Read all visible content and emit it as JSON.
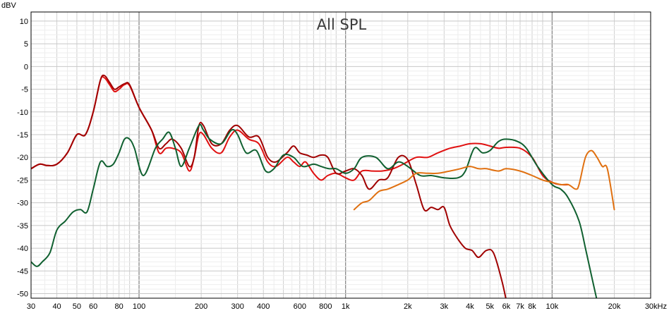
{
  "chart_data": {
    "type": "line",
    "title": "All SPL",
    "ylabel": "dBV",
    "xscale": "log",
    "xlim": [
      30,
      30000
    ],
    "ylim": [
      -51,
      12
    ],
    "grid": true,
    "x_tick_labels": [
      {
        "v": 30,
        "t": "30"
      },
      {
        "v": 40,
        "t": "40"
      },
      {
        "v": 50,
        "t": "50"
      },
      {
        "v": 60,
        "t": "60"
      },
      {
        "v": 80,
        "t": "80"
      },
      {
        "v": 100,
        "t": "100"
      },
      {
        "v": 200,
        "t": "200"
      },
      {
        "v": 300,
        "t": "300"
      },
      {
        "v": 400,
        "t": "400"
      },
      {
        "v": 600,
        "t": "600"
      },
      {
        "v": 800,
        "t": "800"
      },
      {
        "v": 1000,
        "t": "1k"
      },
      {
        "v": 2000,
        "t": "2k"
      },
      {
        "v": 3000,
        "t": "3k"
      },
      {
        "v": 4000,
        "t": "4k"
      },
      {
        "v": 5000,
        "t": "5k"
      },
      {
        "v": 6000,
        "t": "6k"
      },
      {
        "v": 7000,
        "t": "7k"
      },
      {
        "v": 8000,
        "t": "8k"
      },
      {
        "v": 10000,
        "t": "10k"
      },
      {
        "v": 20000,
        "t": "20k"
      },
      {
        "v": 30000,
        "t": "30kHz"
      }
    ],
    "y_ticks": [
      10,
      5,
      0,
      -5,
      -10,
      -15,
      -20,
      -25,
      -30,
      -35,
      -40,
      -45,
      -50
    ],
    "series": [
      {
        "color": "#e01010",
        "points": [
          [
            30,
            -22.5
          ],
          [
            33,
            -21.5
          ],
          [
            36,
            -21.8
          ],
          [
            40,
            -21.5
          ],
          [
            45,
            -19
          ],
          [
            50,
            -15
          ],
          [
            55,
            -15
          ],
          [
            60,
            -10
          ],
          [
            65,
            -3
          ],
          [
            68,
            -2.5
          ],
          [
            72,
            -4
          ],
          [
            76,
            -5.5
          ],
          [
            80,
            -5
          ],
          [
            85,
            -4
          ],
          [
            90,
            -4.2
          ],
          [
            100,
            -9
          ],
          [
            115,
            -14
          ],
          [
            125,
            -19
          ],
          [
            135,
            -18
          ],
          [
            145,
            -18
          ],
          [
            160,
            -19
          ],
          [
            175,
            -23
          ],
          [
            185,
            -20
          ],
          [
            195,
            -15
          ],
          [
            205,
            -15
          ],
          [
            225,
            -18
          ],
          [
            250,
            -19
          ],
          [
            275,
            -15.5
          ],
          [
            300,
            -14
          ],
          [
            340,
            -16
          ],
          [
            380,
            -17
          ],
          [
            420,
            -21
          ],
          [
            460,
            -22
          ],
          [
            520,
            -20
          ],
          [
            560,
            -21
          ],
          [
            600,
            -22
          ],
          [
            640,
            -21
          ],
          [
            700,
            -23.5
          ],
          [
            760,
            -25
          ],
          [
            820,
            -24
          ],
          [
            900,
            -23.5
          ],
          [
            1000,
            -24.5
          ],
          [
            1100,
            -25
          ],
          [
            1200,
            -23
          ],
          [
            1350,
            -23
          ],
          [
            1500,
            -23
          ],
          [
            1700,
            -22.5
          ],
          [
            1900,
            -21.5
          ],
          [
            2200,
            -20
          ],
          [
            2500,
            -20
          ],
          [
            2800,
            -19
          ],
          [
            3200,
            -18
          ],
          [
            3600,
            -17.5
          ],
          [
            4000,
            -17
          ],
          [
            4500,
            -17
          ],
          [
            5000,
            -17.5
          ],
          [
            5500,
            -18
          ],
          [
            6000,
            -17.8
          ],
          [
            7000,
            -18
          ],
          [
            8000,
            -20
          ],
          [
            9000,
            -24
          ],
          [
            10000,
            -25.5
          ],
          [
            11000,
            -26
          ],
          [
            12000,
            -26
          ]
        ]
      },
      {
        "color": "#a00000",
        "points": [
          [
            30,
            -22.5
          ],
          [
            33,
            -21.5
          ],
          [
            36,
            -21.8
          ],
          [
            40,
            -21.5
          ],
          [
            45,
            -19
          ],
          [
            50,
            -15
          ],
          [
            55,
            -15
          ],
          [
            60,
            -10
          ],
          [
            65,
            -3
          ],
          [
            68,
            -2
          ],
          [
            72,
            -3.5
          ],
          [
            76,
            -5
          ],
          [
            80,
            -4.5
          ],
          [
            85,
            -3.8
          ],
          [
            90,
            -4
          ],
          [
            100,
            -9
          ],
          [
            115,
            -14
          ],
          [
            125,
            -18
          ],
          [
            135,
            -17
          ],
          [
            145,
            -16
          ],
          [
            160,
            -18
          ],
          [
            175,
            -22
          ],
          [
            185,
            -20
          ],
          [
            195,
            -13
          ],
          [
            205,
            -13
          ],
          [
            225,
            -17
          ],
          [
            250,
            -17
          ],
          [
            275,
            -14
          ],
          [
            300,
            -13
          ],
          [
            340,
            -15.5
          ],
          [
            380,
            -15.5
          ],
          [
            420,
            -20
          ],
          [
            460,
            -21
          ],
          [
            520,
            -19
          ],
          [
            560,
            -17.5
          ],
          [
            600,
            -19
          ],
          [
            650,
            -19.5
          ],
          [
            700,
            -20
          ],
          [
            760,
            -19.5
          ],
          [
            820,
            -20
          ],
          [
            900,
            -23.5
          ],
          [
            1000,
            -23
          ],
          [
            1100,
            -22.5
          ],
          [
            1200,
            -24
          ],
          [
            1300,
            -27
          ],
          [
            1450,
            -25
          ],
          [
            1600,
            -24.5
          ],
          [
            1800,
            -20
          ],
          [
            2000,
            -20.5
          ],
          [
            2200,
            -26
          ],
          [
            2400,
            -31.5
          ],
          [
            2600,
            -31
          ],
          [
            2800,
            -31.5
          ],
          [
            3000,
            -31
          ],
          [
            3200,
            -35
          ],
          [
            3500,
            -38
          ],
          [
            3800,
            -40
          ],
          [
            4100,
            -40.5
          ],
          [
            4400,
            -42
          ],
          [
            4800,
            -40.5
          ],
          [
            5200,
            -41
          ],
          [
            5700,
            -47
          ],
          [
            6000,
            -51.5
          ]
        ]
      },
      {
        "color": "#106030",
        "points": [
          [
            30,
            -43
          ],
          [
            32,
            -44
          ],
          [
            34,
            -43
          ],
          [
            37,
            -41
          ],
          [
            40,
            -36
          ],
          [
            44,
            -34
          ],
          [
            48,
            -32
          ],
          [
            52,
            -31.5
          ],
          [
            56,
            -32
          ],
          [
            60,
            -27
          ],
          [
            65,
            -21
          ],
          [
            70,
            -22
          ],
          [
            75,
            -21.5
          ],
          [
            80,
            -19
          ],
          [
            85,
            -16
          ],
          [
            90,
            -16
          ],
          [
            95,
            -18
          ],
          [
            105,
            -24
          ],
          [
            120,
            -18
          ],
          [
            130,
            -16
          ],
          [
            140,
            -14.5
          ],
          [
            150,
            -18
          ],
          [
            160,
            -22
          ],
          [
            175,
            -18
          ],
          [
            195,
            -13
          ],
          [
            205,
            -14
          ],
          [
            220,
            -16
          ],
          [
            250,
            -17
          ],
          [
            280,
            -14
          ],
          [
            300,
            -15
          ],
          [
            330,
            -19
          ],
          [
            370,
            -18.5
          ],
          [
            410,
            -23
          ],
          [
            450,
            -22.5
          ],
          [
            500,
            -19.5
          ],
          [
            560,
            -20
          ],
          [
            620,
            -22
          ],
          [
            700,
            -21.5
          ],
          [
            760,
            -22
          ],
          [
            830,
            -22.5
          ],
          [
            900,
            -22.5
          ],
          [
            1000,
            -23.5
          ],
          [
            1100,
            -22.5
          ],
          [
            1200,
            -20
          ],
          [
            1400,
            -20
          ],
          [
            1600,
            -22.5
          ],
          [
            1800,
            -21
          ],
          [
            2000,
            -22
          ],
          [
            2300,
            -24
          ],
          [
            2600,
            -24
          ],
          [
            3000,
            -24.5
          ],
          [
            3500,
            -24.5
          ],
          [
            3800,
            -23
          ],
          [
            4200,
            -18
          ],
          [
            4600,
            -19
          ],
          [
            5000,
            -18.5
          ],
          [
            5500,
            -16.5
          ],
          [
            6000,
            -16
          ],
          [
            6800,
            -16.5
          ],
          [
            7500,
            -18
          ],
          [
            8500,
            -22
          ],
          [
            10000,
            -26
          ],
          [
            11000,
            -27
          ],
          [
            12000,
            -29
          ],
          [
            13500,
            -34
          ],
          [
            14500,
            -40
          ],
          [
            15500,
            -46
          ],
          [
            16500,
            -51.5
          ]
        ]
      },
      {
        "color": "#e07010",
        "points": [
          [
            1100,
            -31.5
          ],
          [
            1200,
            -30
          ],
          [
            1300,
            -29.5
          ],
          [
            1450,
            -27.5
          ],
          [
            1600,
            -27
          ],
          [
            1800,
            -26
          ],
          [
            2000,
            -25
          ],
          [
            2200,
            -23.5
          ],
          [
            2500,
            -23.5
          ],
          [
            2800,
            -23.5
          ],
          [
            3200,
            -23
          ],
          [
            3600,
            -22.5
          ],
          [
            4000,
            -22
          ],
          [
            4400,
            -22.5
          ],
          [
            4800,
            -22.5
          ],
          [
            5500,
            -23
          ],
          [
            6000,
            -22.5
          ],
          [
            7000,
            -23
          ],
          [
            8000,
            -24
          ],
          [
            9000,
            -25
          ],
          [
            10000,
            -25.5
          ],
          [
            11000,
            -26
          ],
          [
            12000,
            -26
          ],
          [
            13000,
            -27
          ],
          [
            13500,
            -26
          ],
          [
            14500,
            -20
          ],
          [
            15500,
            -18.5
          ],
          [
            16500,
            -20
          ],
          [
            17500,
            -22
          ],
          [
            18500,
            -22.5
          ],
          [
            20000,
            -31.5
          ]
        ]
      }
    ]
  }
}
